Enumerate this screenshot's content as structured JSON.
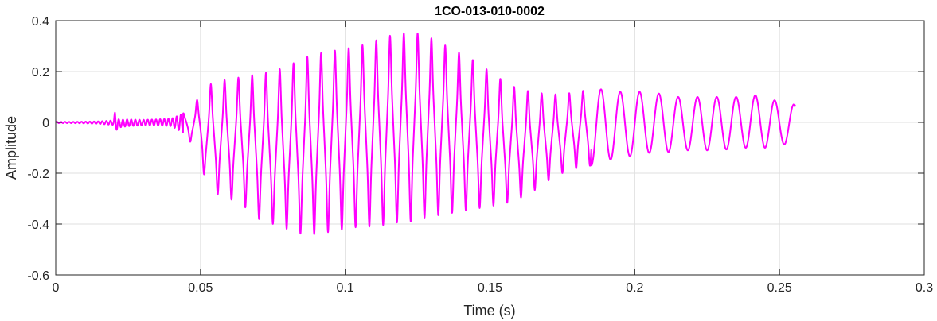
{
  "chart_data": {
    "type": "line",
    "title": "1CO-013-010-0002",
    "xlabel": "Time (s)",
    "ylabel": "Amplitude",
    "xlim": [
      0,
      0.3
    ],
    "ylim": [
      -0.6,
      0.4
    ],
    "xticks": [
      0,
      0.05,
      0.1,
      0.15,
      0.2,
      0.25,
      0.3
    ],
    "xtick_labels": [
      "0",
      "0.05",
      "0.1",
      "0.15",
      "0.2",
      "0.25",
      "0.3"
    ],
    "yticks": [
      -0.6,
      -0.4,
      -0.2,
      0,
      0.2,
      0.4
    ],
    "ytick_labels": [
      "-0.6",
      "-0.4",
      "-0.2",
      "0",
      "0.2",
      "0.4"
    ],
    "grid": true,
    "series": [
      {
        "color": "#ff00ff",
        "x": [
          0,
          0.005,
          0.01,
          0.015,
          0.02,
          0.0205,
          0.021,
          0.022,
          0.025,
          0.03,
          0.035,
          0.04,
          0.044,
          0.046,
          0.048,
          0.05,
          0.052,
          0.055,
          0.06,
          0.065,
          0.07,
          0.075,
          0.08,
          0.085,
          0.09,
          0.095,
          0.1,
          0.105,
          0.11,
          0.115,
          0.12,
          0.123,
          0.125,
          0.13,
          0.135,
          0.14,
          0.145,
          0.15,
          0.155,
          0.16,
          0.165,
          0.17,
          0.175,
          0.18,
          0.185,
          0.19,
          0.195,
          0.2,
          0.205,
          0.21,
          0.215,
          0.22,
          0.225,
          0.23,
          0.235,
          0.24,
          0.245,
          0.25,
          0.2555
        ],
        "env_upper": [
          0.003,
          0.002,
          0.003,
          0.004,
          0.008,
          0.045,
          0.02,
          0.01,
          0.012,
          0.01,
          0.012,
          0.015,
          0.035,
          0.06,
          0.08,
          0.1,
          0.14,
          0.16,
          0.17,
          0.18,
          0.19,
          0.2,
          0.22,
          0.25,
          0.27,
          0.28,
          0.29,
          0.3,
          0.32,
          0.34,
          0.35,
          0.36,
          0.35,
          0.33,
          0.3,
          0.27,
          0.24,
          0.2,
          0.16,
          0.13,
          0.12,
          0.11,
          0.11,
          0.12,
          0.13,
          0.13,
          0.12,
          0.12,
          0.12,
          0.11,
          0.1,
          0.1,
          0.1,
          0.1,
          0.1,
          0.11,
          0.1,
          0.08,
          0.07
        ],
        "env_lower": [
          -0.003,
          -0.003,
          -0.004,
          -0.006,
          -0.01,
          -0.035,
          -0.03,
          -0.02,
          -0.015,
          -0.012,
          -0.012,
          -0.015,
          -0.04,
          -0.07,
          -0.1,
          -0.15,
          -0.24,
          -0.28,
          -0.3,
          -0.33,
          -0.38,
          -0.4,
          -0.42,
          -0.44,
          -0.44,
          -0.43,
          -0.42,
          -0.41,
          -0.41,
          -0.4,
          -0.39,
          -0.39,
          -0.38,
          -0.37,
          -0.36,
          -0.35,
          -0.34,
          -0.33,
          -0.32,
          -0.3,
          -0.27,
          -0.23,
          -0.2,
          -0.18,
          -0.17,
          -0.15,
          -0.14,
          -0.13,
          -0.12,
          -0.12,
          -0.11,
          -0.11,
          -0.11,
          -0.11,
          -0.1,
          -0.1,
          -0.1,
          -0.09,
          -0.08
        ]
      }
    ]
  }
}
